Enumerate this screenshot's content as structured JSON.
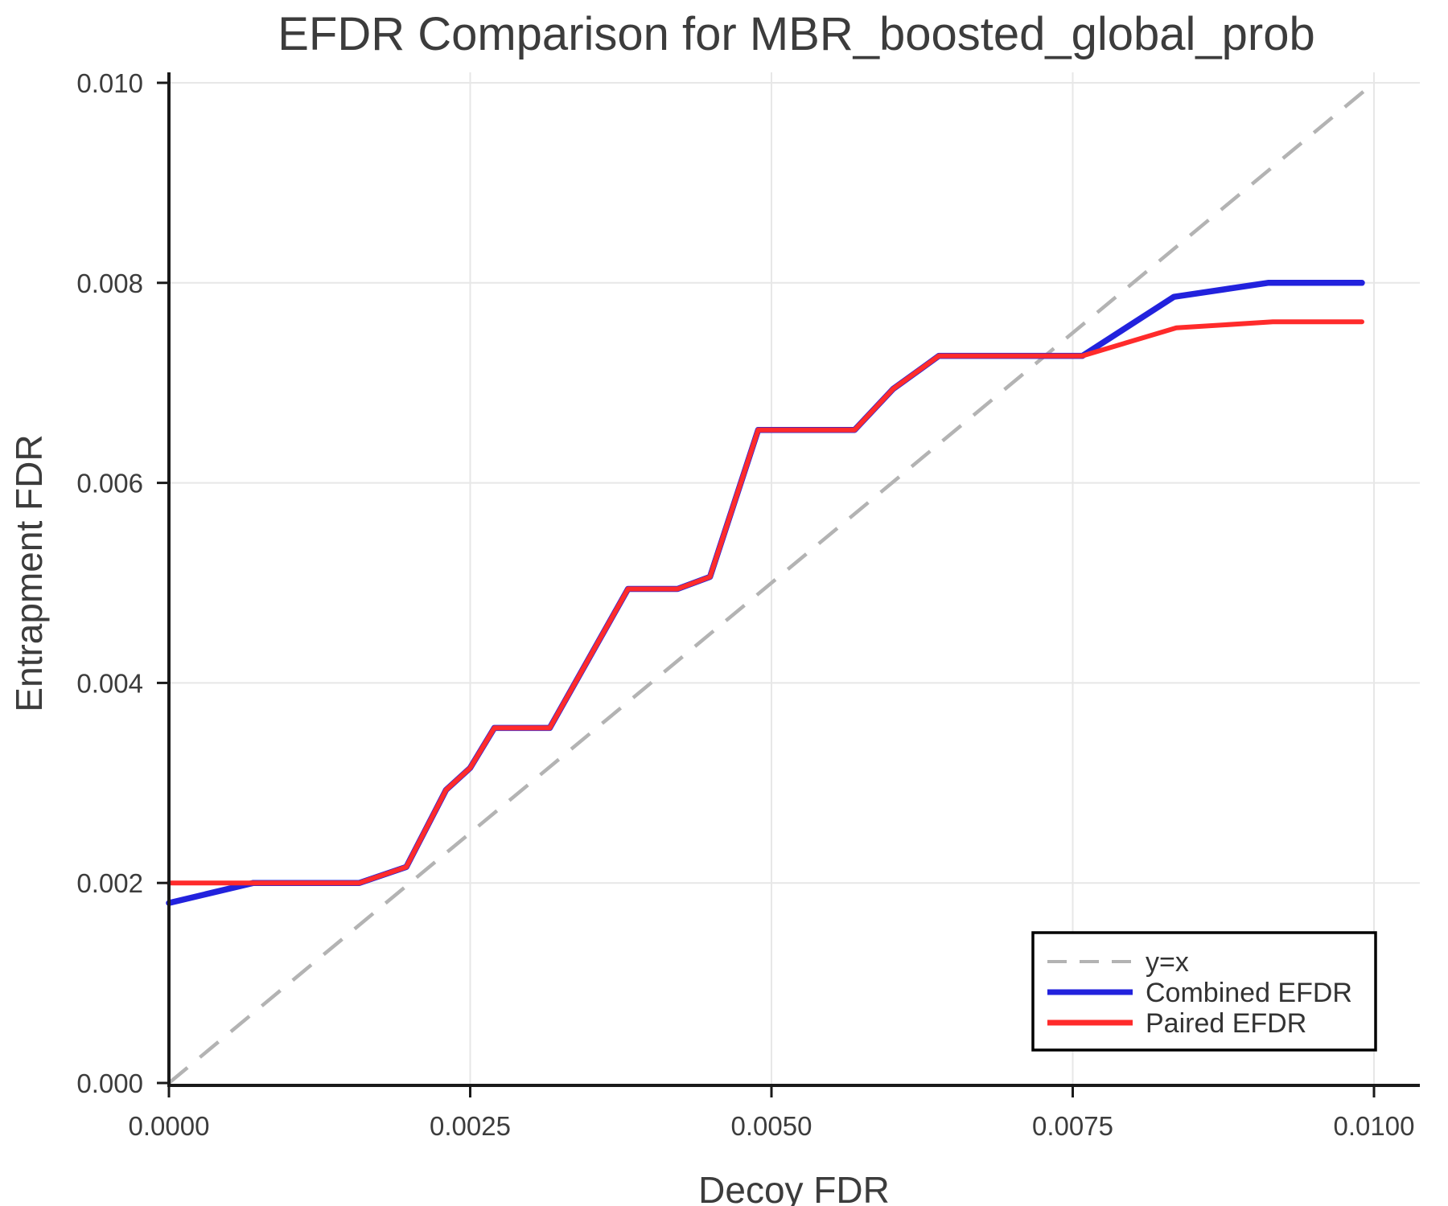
{
  "chart_data": {
    "type": "line",
    "title": "EFDR Comparison for MBR_boosted_global_prob",
    "xlabel": "Decoy FDR",
    "ylabel": "Entrapment FDR",
    "xlim": [
      0,
      0.0104
    ],
    "ylim": [
      0,
      0.0101
    ],
    "grid": true,
    "legend_position": "lower right",
    "x_ticks": [
      0.0,
      0.0025,
      0.005,
      0.0075,
      0.01
    ],
    "x_tick_labels": [
      "0.0000",
      "0.0025",
      "0.0050",
      "0.0075",
      "0.0100"
    ],
    "y_ticks": [
      0.0,
      0.002,
      0.004,
      0.006,
      0.008,
      0.01
    ],
    "y_tick_labels": [
      "0.000",
      "0.002",
      "0.004",
      "0.006",
      "0.008",
      "0.010"
    ],
    "reference_line": {
      "name": "y=x",
      "style": "dashed",
      "color": "#b3b3b3",
      "points": [
        [
          0,
          0
        ],
        [
          0.01,
          0.01
        ]
      ]
    },
    "series": [
      {
        "name": "Combined EFDR",
        "color": "#2222dd",
        "points": [
          [
            0.0,
            0.0018
          ],
          [
            0.0007,
            0.002
          ],
          [
            0.00158,
            0.002
          ],
          [
            0.00197,
            0.00216
          ],
          [
            0.0023,
            0.00293
          ],
          [
            0.0025,
            0.00315
          ],
          [
            0.0027,
            0.00355
          ],
          [
            0.00316,
            0.00355
          ],
          [
            0.00381,
            0.00494
          ],
          [
            0.00422,
            0.00494
          ],
          [
            0.00449,
            0.00506
          ],
          [
            0.00489,
            0.00653
          ],
          [
            0.00569,
            0.00653
          ],
          [
            0.00601,
            0.00694
          ],
          [
            0.00639,
            0.00727
          ],
          [
            0.00758,
            0.00727
          ],
          [
            0.00834,
            0.00786
          ],
          [
            0.00912,
            0.008
          ],
          [
            0.0099,
            0.008
          ]
        ]
      },
      {
        "name": "Paired EFDR",
        "color": "#ff2b2b",
        "points": [
          [
            0.0,
            0.002
          ],
          [
            0.00158,
            0.002
          ],
          [
            0.00197,
            0.00216
          ],
          [
            0.0023,
            0.00293
          ],
          [
            0.0025,
            0.00315
          ],
          [
            0.0027,
            0.00355
          ],
          [
            0.00316,
            0.00355
          ],
          [
            0.00381,
            0.00494
          ],
          [
            0.00422,
            0.00494
          ],
          [
            0.00449,
            0.00506
          ],
          [
            0.00489,
            0.00653
          ],
          [
            0.00569,
            0.00653
          ],
          [
            0.00601,
            0.00694
          ],
          [
            0.00639,
            0.00727
          ],
          [
            0.00758,
            0.00727
          ],
          [
            0.00836,
            0.00755
          ],
          [
            0.00916,
            0.00761
          ],
          [
            0.0099,
            0.00761
          ]
        ]
      }
    ]
  },
  "legend": {
    "items": [
      {
        "label": "y=x"
      },
      {
        "label": "Combined EFDR"
      },
      {
        "label": "Paired EFDR"
      }
    ]
  },
  "colors": {
    "grid": "#e7e7e7",
    "spine": "#1a1a1a",
    "text": "#3c3c3c"
  }
}
